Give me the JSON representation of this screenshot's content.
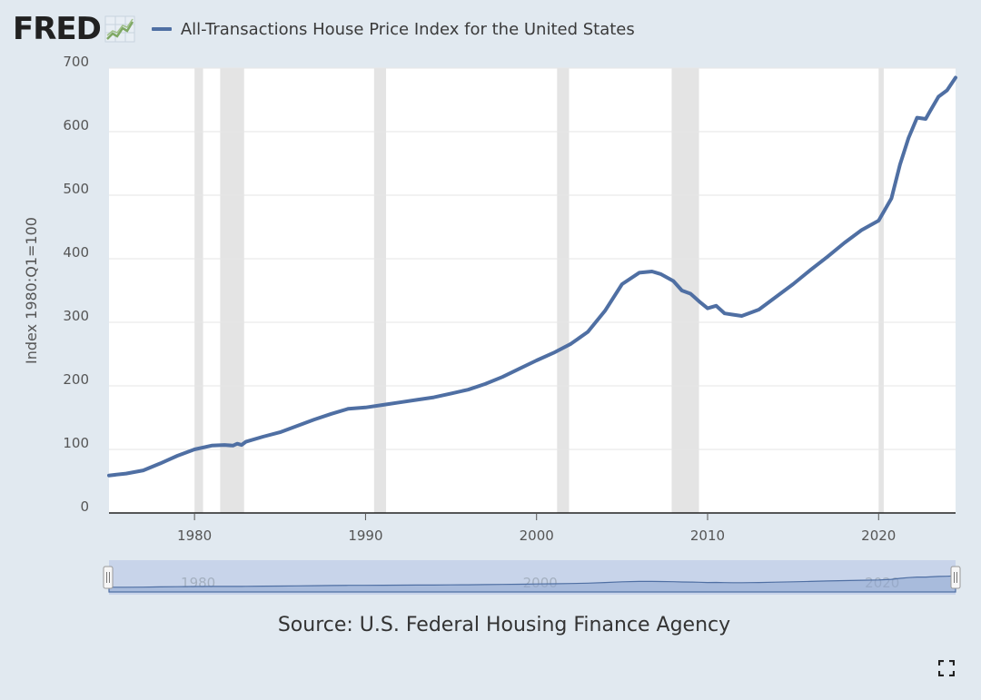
{
  "header": {
    "logo_text": "FRED",
    "legend_label": "All-Transactions House Price Index for the United States"
  },
  "source": "Source: U.S. Federal Housing Finance Agency",
  "colors": {
    "series": "#4f6fa3",
    "recession": "#e4e4e4",
    "background": "#e1e9f0",
    "navigator": "#c5d2ea"
  },
  "chart_data": {
    "type": "line",
    "title": "All-Transactions House Price Index for the United States",
    "ylabel": "Index 1980:Q1=100",
    "xlabel": "",
    "xlim": [
      1975.0,
      2024.5
    ],
    "ylim": [
      0,
      700
    ],
    "yticks": [
      0,
      100,
      200,
      300,
      400,
      500,
      600,
      700
    ],
    "xticks": [
      1980,
      1990,
      2000,
      2010,
      2020
    ],
    "grid": "horizontal",
    "recessions": [
      [
        1980.0,
        1980.5
      ],
      [
        1981.5,
        1982.9
      ],
      [
        1990.5,
        1991.2
      ],
      [
        2001.2,
        2001.9
      ],
      [
        2007.9,
        2009.5
      ],
      [
        2020.0,
        2020.3
      ]
    ],
    "series": [
      {
        "name": "All-Transactions House Price Index for the United States",
        "x": [
          1975.0,
          1976.0,
          1977.0,
          1978.0,
          1979.0,
          1980.0,
          1981.0,
          1981.75,
          1982.25,
          1982.5,
          1982.75,
          1983.0,
          1984.0,
          1985.0,
          1986.0,
          1987.0,
          1988.0,
          1989.0,
          1990.0,
          1991.0,
          1992.0,
          1993.0,
          1994.0,
          1995.0,
          1996.0,
          1997.0,
          1998.0,
          1999.0,
          2000.0,
          2001.0,
          2002.0,
          2003.0,
          2004.0,
          2005.0,
          2006.0,
          2006.75,
          2007.25,
          2008.0,
          2008.5,
          2009.0,
          2009.5,
          2010.0,
          2010.5,
          2011.0,
          2011.5,
          2012.0,
          2012.5,
          2013.0,
          2014.0,
          2015.0,
          2016.0,
          2017.0,
          2018.0,
          2019.0,
          2020.0,
          2020.75,
          2021.25,
          2021.75,
          2022.25,
          2022.75,
          2023.0,
          2023.5,
          2024.0,
          2024.5
        ],
        "values": [
          59,
          62,
          67,
          78,
          90,
          100,
          106,
          107,
          106,
          109,
          107,
          112,
          120,
          127,
          137,
          147,
          156,
          164,
          166,
          170,
          174,
          178,
          182,
          188,
          194,
          203,
          214,
          227,
          240,
          252,
          266,
          285,
          318,
          360,
          378,
          380,
          376,
          365,
          350,
          345,
          333,
          322,
          326,
          314,
          312,
          310,
          315,
          320,
          340,
          360,
          382,
          403,
          425,
          445,
          460,
          495,
          548,
          590,
          622,
          620,
          632,
          655,
          665,
          685
        ]
      }
    ]
  }
}
